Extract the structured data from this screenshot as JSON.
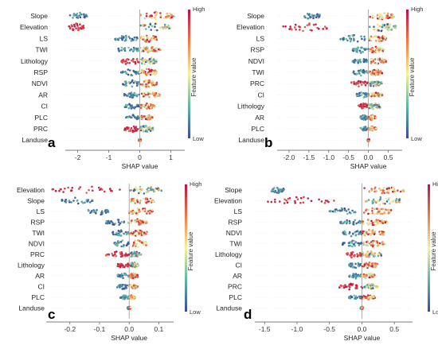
{
  "figure": {
    "colors": {
      "low": "#3a4a9e",
      "mid": "#f5f29a",
      "high": "#b8124a"
    },
    "colorbar": {
      "high_label": "High",
      "low_label": "Low",
      "title": "Feature value"
    }
  },
  "chart_data": [
    {
      "type": "scatter",
      "subtype": "shap-beeswarm",
      "panel_label": "a",
      "xlabel": "SHAP value",
      "xlim": [
        -2.4,
        1.45
      ],
      "xticks": [
        "-2",
        "-1",
        "0",
        "1"
      ],
      "xtick_values": [
        -2,
        -1,
        0,
        1
      ],
      "features": [
        {
          "name": "Slope",
          "neg": [
            -2.25,
            -1.7
          ],
          "pos": [
            0.0,
            1.2
          ],
          "spread": 0.9
        },
        {
          "name": "Elevation",
          "neg": [
            -2.3,
            -1.8
          ],
          "pos": [
            0.0,
            1.0
          ],
          "spread": 0.9
        },
        {
          "name": "LS",
          "neg": [
            -0.8,
            -0.05
          ],
          "pos": [
            0.0,
            0.55
          ],
          "spread": 0.8
        },
        {
          "name": "TWI",
          "neg": [
            -0.75,
            0.0
          ],
          "pos": [
            0.0,
            0.7
          ],
          "spread": 0.7
        },
        {
          "name": "Lithology",
          "neg": [
            -0.6,
            0.0
          ],
          "pos": [
            0.0,
            0.55
          ],
          "spread": 0.9
        },
        {
          "name": "RSP",
          "neg": [
            -0.6,
            0.0
          ],
          "pos": [
            0.0,
            0.55
          ],
          "spread": 0.8
        },
        {
          "name": "NDVI",
          "neg": [
            -0.55,
            0.0
          ],
          "pos": [
            0.0,
            0.55
          ],
          "spread": 0.8
        },
        {
          "name": "AR",
          "neg": [
            -0.5,
            0.0
          ],
          "pos": [
            0.0,
            0.65
          ],
          "spread": 0.6
        },
        {
          "name": "CI",
          "neg": [
            -0.5,
            0.0
          ],
          "pos": [
            0.0,
            0.5
          ],
          "spread": 0.6
        },
        {
          "name": "PLC",
          "neg": [
            -0.45,
            0.0
          ],
          "pos": [
            0.0,
            0.45
          ],
          "spread": 0.6
        },
        {
          "name": "PRC",
          "neg": [
            -0.5,
            0.0
          ],
          "pos": [
            0.0,
            0.45
          ],
          "spread": 0.7
        },
        {
          "name": "Landuse",
          "neg": [
            -0.03,
            0.0
          ],
          "pos": [
            0.0,
            0.03
          ],
          "spread": 0.3
        }
      ]
    },
    {
      "type": "scatter",
      "subtype": "shap-beeswarm",
      "panel_label": "b",
      "xlabel": "SHAP value",
      "xlim": [
        -2.3,
        0.85
      ],
      "xticks": [
        "-2.0",
        "-1.5",
        "-1.0",
        "-0.5",
        "0.0",
        "0.5"
      ],
      "xtick_values": [
        -2.0,
        -1.5,
        -1.0,
        -0.5,
        0.0,
        0.5
      ],
      "features": [
        {
          "name": "Slope",
          "neg": [
            -1.65,
            -1.2
          ],
          "pos": [
            0.0,
            0.65
          ],
          "spread": 0.8
        },
        {
          "name": "Elevation",
          "neg": [
            -2.15,
            -1.0
          ],
          "pos": [
            0.0,
            0.7
          ],
          "spread": 0.9
        },
        {
          "name": "LS",
          "neg": [
            -0.75,
            0.0
          ],
          "pos": [
            0.0,
            0.45
          ],
          "spread": 0.8
        },
        {
          "name": "RSP",
          "neg": [
            -0.4,
            0.0
          ],
          "pos": [
            0.0,
            0.4
          ],
          "spread": 0.7
        },
        {
          "name": "NDVI",
          "neg": [
            -0.4,
            0.0
          ],
          "pos": [
            0.0,
            0.45
          ],
          "spread": 0.7
        },
        {
          "name": "TWI",
          "neg": [
            -0.4,
            0.0
          ],
          "pos": [
            0.0,
            0.35
          ],
          "spread": 0.7
        },
        {
          "name": "PRC",
          "neg": [
            -0.45,
            0.0
          ],
          "pos": [
            0.0,
            0.35
          ],
          "spread": 0.7
        },
        {
          "name": "CI",
          "neg": [
            -0.3,
            0.0
          ],
          "pos": [
            0.0,
            0.35
          ],
          "spread": 0.6
        },
        {
          "name": "Lithology",
          "neg": [
            -0.25,
            0.0
          ],
          "pos": [
            0.0,
            0.3
          ],
          "spread": 0.7
        },
        {
          "name": "AR",
          "neg": [
            -0.2,
            0.0
          ],
          "pos": [
            0.0,
            0.2
          ],
          "spread": 0.6
        },
        {
          "name": "PLC",
          "neg": [
            -0.2,
            0.0
          ],
          "pos": [
            0.0,
            0.2
          ],
          "spread": 0.5
        },
        {
          "name": "Landuse",
          "neg": [
            -0.02,
            0.0
          ],
          "pos": [
            0.0,
            0.02
          ],
          "spread": 0.3
        }
      ]
    },
    {
      "type": "scatter",
      "subtype": "shap-beeswarm",
      "panel_label": "c",
      "xlabel": "SHAP value",
      "xlim": [
        -0.28,
        0.15
      ],
      "xticks": [
        "-0.2",
        "-0.1",
        "0.0",
        "0.1"
      ],
      "xtick_values": [
        -0.2,
        -0.1,
        0.0,
        0.1
      ],
      "features": [
        {
          "name": "Elevation",
          "neg": [
            -0.26,
            -0.02
          ],
          "pos": [
            0.0,
            0.11
          ],
          "spread": 0.9
        },
        {
          "name": "Slope",
          "neg": [
            -0.23,
            -0.12
          ],
          "pos": [
            0.0,
            0.085
          ],
          "spread": 0.8
        },
        {
          "name": "LS",
          "neg": [
            -0.14,
            -0.07
          ],
          "pos": [
            0.0,
            0.08
          ],
          "spread": 0.8
        },
        {
          "name": "RSP",
          "neg": [
            -0.08,
            0.0
          ],
          "pos": [
            0.0,
            0.06
          ],
          "spread": 0.7
        },
        {
          "name": "TWI",
          "neg": [
            -0.06,
            0.0
          ],
          "pos": [
            0.0,
            0.06
          ],
          "spread": 0.7
        },
        {
          "name": "NDVI",
          "neg": [
            -0.05,
            0.0
          ],
          "pos": [
            0.0,
            0.06
          ],
          "spread": 0.8
        },
        {
          "name": "PRC",
          "neg": [
            -0.08,
            0.0
          ],
          "pos": [
            0.0,
            0.04
          ],
          "spread": 0.7
        },
        {
          "name": "Lithology",
          "neg": [
            -0.04,
            0.0
          ],
          "pos": [
            0.0,
            0.03
          ],
          "spread": 0.7
        },
        {
          "name": "AR",
          "neg": [
            -0.04,
            0.0
          ],
          "pos": [
            0.0,
            0.03
          ],
          "spread": 0.6
        },
        {
          "name": "CI",
          "neg": [
            -0.04,
            0.0
          ],
          "pos": [
            0.0,
            0.03
          ],
          "spread": 0.6
        },
        {
          "name": "PLC",
          "neg": [
            -0.03,
            0.0
          ],
          "pos": [
            0.0,
            0.02
          ],
          "spread": 0.5
        },
        {
          "name": "Landuse",
          "neg": [
            -0.005,
            0.0
          ],
          "pos": [
            0.0,
            0.005
          ],
          "spread": 0.3
        }
      ]
    },
    {
      "type": "scatter",
      "subtype": "shap-beeswarm",
      "panel_label": "d",
      "xlabel": "SHAP value",
      "xlim": [
        -1.65,
        0.78
      ],
      "xticks": [
        "-1.5",
        "-1.0",
        "-0.5",
        "0.0",
        "0.5"
      ],
      "xtick_values": [
        -1.5,
        -1.0,
        -0.5,
        0.0,
        0.5
      ],
      "features": [
        {
          "name": "Slope",
          "neg": [
            -1.4,
            -1.15
          ],
          "pos": [
            0.0,
            0.65
          ],
          "spread": 0.8
        },
        {
          "name": "Elevation",
          "neg": [
            -1.45,
            -0.4
          ],
          "pos": [
            0.0,
            0.6
          ],
          "spread": 0.9
        },
        {
          "name": "LS",
          "neg": [
            -0.5,
            -0.1
          ],
          "pos": [
            0.0,
            0.45
          ],
          "spread": 0.8
        },
        {
          "name": "RSP",
          "neg": [
            -0.35,
            0.0
          ],
          "pos": [
            0.0,
            0.4
          ],
          "spread": 0.7
        },
        {
          "name": "NDVI",
          "neg": [
            -0.3,
            0.0
          ],
          "pos": [
            0.0,
            0.35
          ],
          "spread": 0.8
        },
        {
          "name": "TWI",
          "neg": [
            -0.3,
            0.0
          ],
          "pos": [
            0.0,
            0.35
          ],
          "spread": 0.7
        },
        {
          "name": "Lithology",
          "neg": [
            -0.25,
            0.0
          ],
          "pos": [
            0.0,
            0.3
          ],
          "spread": 0.8
        },
        {
          "name": "CI",
          "neg": [
            -0.2,
            0.0
          ],
          "pos": [
            0.0,
            0.25
          ],
          "spread": 0.7
        },
        {
          "name": "AR",
          "neg": [
            -0.2,
            0.0
          ],
          "pos": [
            0.0,
            0.2
          ],
          "spread": 0.6
        },
        {
          "name": "PRC",
          "neg": [
            -0.35,
            0.0
          ],
          "pos": [
            0.0,
            0.25
          ],
          "spread": 0.7
        },
        {
          "name": "PLC",
          "neg": [
            -0.2,
            0.0
          ],
          "pos": [
            0.0,
            0.2
          ],
          "spread": 0.5
        },
        {
          "name": "Landuse",
          "neg": [
            -0.02,
            0.0
          ],
          "pos": [
            0.0,
            0.02
          ],
          "spread": 0.3
        }
      ]
    }
  ]
}
